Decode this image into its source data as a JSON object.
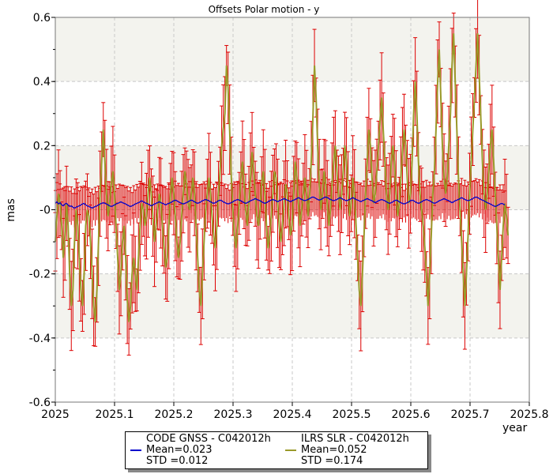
{
  "chart_data": {
    "type": "line",
    "title": "Offsets Polar motion - y",
    "xlabel": "year",
    "ylabel": "mas",
    "xlim": [
      2025.0,
      2025.8
    ],
    "ylim": [
      -0.6,
      0.6
    ],
    "x_ticks": [
      "2025",
      "2025.1",
      "2025.2",
      "2025.3",
      "2025.4",
      "2025.5",
      "2025.6",
      "2025.7",
      "2025.8"
    ],
    "y_ticks": [
      "0.6",
      "0.4",
      "0.2",
      "-0",
      "-0.2",
      "-0.4",
      "-0.6"
    ],
    "grid": true,
    "legend_position": "bottom",
    "series": [
      {
        "name": "CODE GNSS - C042012h",
        "color": "#0000cc",
        "mean_label": "Mean=0.023",
        "std_label": "STD =0.012",
        "x_start": 2025.0,
        "x_step": 0.0027,
        "values": [
          0.02,
          0.025,
          0.018,
          0.022,
          0.015,
          0.012,
          0.018,
          0.02,
          0.015,
          0.01,
          0.012,
          0.008,
          0.005,
          0.008,
          0.01,
          0.012,
          0.015,
          0.018,
          0.02,
          0.015,
          0.012,
          0.01,
          0.008,
          0.005,
          0.008,
          0.01,
          0.012,
          0.015,
          0.018,
          0.02,
          0.022,
          0.02,
          0.018,
          0.015,
          0.012,
          0.01,
          0.012,
          0.015,
          0.018,
          0.02,
          0.022,
          0.025,
          0.022,
          0.02,
          0.018,
          0.015,
          0.012,
          0.01,
          0.012,
          0.015,
          0.018,
          0.02,
          0.022,
          0.025,
          0.028,
          0.025,
          0.022,
          0.02,
          0.018,
          0.015,
          0.012,
          0.015,
          0.018,
          0.02,
          0.022,
          0.025,
          0.022,
          0.02,
          0.018,
          0.015,
          0.018,
          0.02,
          0.022,
          0.025,
          0.028,
          0.03,
          0.028,
          0.025,
          0.022,
          0.02,
          0.018,
          0.02,
          0.022,
          0.025,
          0.028,
          0.03,
          0.028,
          0.025,
          0.022,
          0.02,
          0.022,
          0.025,
          0.028,
          0.03,
          0.032,
          0.03,
          0.028,
          0.025,
          0.022,
          0.02,
          0.022,
          0.025,
          0.028,
          0.03,
          0.028,
          0.025,
          0.022,
          0.02,
          0.018,
          0.02,
          0.022,
          0.025,
          0.028,
          0.03,
          0.032,
          0.03,
          0.028,
          0.025,
          0.022,
          0.02,
          0.022,
          0.025,
          0.028,
          0.03,
          0.032,
          0.035,
          0.032,
          0.03,
          0.028,
          0.025,
          0.022,
          0.02,
          0.022,
          0.025,
          0.028,
          0.03,
          0.032,
          0.03,
          0.028,
          0.025,
          0.028,
          0.03,
          0.032,
          0.035,
          0.032,
          0.03,
          0.028,
          0.025,
          0.028,
          0.03,
          0.032,
          0.035,
          0.038,
          0.035,
          0.032,
          0.03,
          0.028,
          0.03,
          0.032,
          0.035,
          0.038,
          0.04,
          0.038,
          0.035,
          0.032,
          0.03,
          0.032,
          0.035,
          0.038,
          0.04,
          0.038,
          0.035,
          0.032,
          0.03,
          0.028,
          0.03,
          0.032,
          0.035,
          0.038,
          0.035,
          0.032,
          0.03,
          0.028,
          0.03,
          0.032,
          0.035,
          0.038,
          0.035,
          0.032,
          0.03,
          0.028,
          0.025,
          0.028,
          0.03,
          0.032,
          0.035,
          0.032,
          0.03,
          0.028,
          0.025,
          0.022,
          0.025,
          0.028,
          0.03,
          0.032,
          0.03,
          0.028,
          0.025,
          0.022,
          0.02,
          0.022,
          0.025,
          0.028,
          0.03,
          0.028,
          0.025,
          0.022,
          0.02,
          0.018,
          0.02,
          0.022,
          0.025,
          0.028,
          0.03,
          0.028,
          0.025,
          0.022,
          0.02,
          0.022,
          0.025,
          0.028,
          0.03,
          0.032,
          0.03,
          0.028,
          0.025,
          0.022,
          0.02,
          0.022,
          0.025,
          0.028,
          0.03,
          0.032,
          0.035,
          0.032,
          0.03,
          0.028,
          0.025,
          0.022,
          0.025,
          0.028,
          0.03,
          0.032,
          0.035,
          0.038,
          0.035,
          0.032,
          0.03,
          0.028,
          0.03,
          0.032,
          0.035,
          0.038,
          0.04,
          0.038,
          0.035,
          0.032,
          0.03,
          0.028,
          0.025,
          0.022,
          0.02,
          0.018,
          0.015,
          0.012,
          0.01,
          0.012,
          0.015,
          0.018,
          0.02,
          0.018,
          0.015
        ]
      },
      {
        "name": "ILRS SLR - C042012h",
        "color": "#9a9a2a",
        "error_color": "#dd0000",
        "mean_label": "Mean=0.052",
        "std_label": "STD =0.174",
        "x_start": 2025.0,
        "x_step": 0.0027,
        "values": [
          -0.1,
          -0.02,
          0.05,
          0.02,
          -0.05,
          -0.15,
          -0.08,
          0.02,
          -0.05,
          -0.2,
          -0.3,
          -0.25,
          -0.1,
          0.0,
          -0.05,
          -0.15,
          -0.25,
          -0.3,
          -0.2,
          -0.05,
          0.0,
          -0.02,
          -0.1,
          -0.2,
          -0.3,
          -0.35,
          -0.25,
          -0.1,
          0.05,
          0.15,
          0.25,
          0.15,
          0.05,
          -0.02,
          0.02,
          0.08,
          0.12,
          0.05,
          -0.05,
          -0.15,
          -0.25,
          -0.2,
          -0.1,
          -0.05,
          -0.15,
          -0.28,
          -0.35,
          -0.3,
          -0.2,
          -0.15,
          -0.2,
          -0.25,
          -0.15,
          -0.05,
          0.02,
          0.0,
          -0.05,
          -0.02,
          0.05,
          0.1,
          0.05,
          -0.02,
          -0.1,
          -0.05,
          0.0,
          0.05,
          0.02,
          -0.05,
          -0.12,
          -0.18,
          -0.15,
          -0.05,
          0.05,
          0.1,
          0.05,
          -0.02,
          -0.1,
          -0.15,
          -0.1,
          -0.02,
          0.05,
          0.12,
          0.08,
          0.02,
          0.0,
          0.05,
          0.1,
          0.05,
          -0.05,
          -0.15,
          -0.25,
          -0.3,
          -0.2,
          -0.1,
          0.0,
          0.05,
          0.1,
          0.05,
          -0.02,
          -0.08,
          -0.12,
          -0.05,
          0.05,
          0.12,
          0.2,
          0.25,
          0.3,
          0.45,
          0.38,
          0.25,
          0.1,
          0.0,
          -0.08,
          -0.12,
          -0.05,
          0.02,
          0.1,
          0.15,
          0.08,
          0.0,
          -0.05,
          0.02,
          0.1,
          0.18,
          0.12,
          0.05,
          -0.02,
          -0.05,
          0.0,
          0.08,
          0.12,
          0.05,
          -0.05,
          -0.12,
          -0.08,
          -0.02,
          0.05,
          0.12,
          0.1,
          0.02,
          -0.05,
          -0.1,
          -0.05,
          0.02,
          0.08,
          0.05,
          -0.02,
          -0.08,
          -0.05,
          0.05,
          0.15,
          0.1,
          0.02,
          -0.05,
          0.0,
          0.05,
          0.1,
          0.05,
          -0.02,
          0.05,
          0.15,
          0.28,
          0.45,
          0.35,
          0.2,
          0.08,
          0.0,
          0.05,
          0.12,
          0.08,
          0.02,
          -0.05,
          0.0,
          0.08,
          0.15,
          0.2,
          0.12,
          0.05,
          0.0,
          0.05,
          0.12,
          0.2,
          0.15,
          0.05,
          -0.02,
          0.02,
          0.1,
          0.05,
          -0.05,
          -0.15,
          -0.25,
          -0.3,
          -0.2,
          -0.08,
          0.05,
          0.15,
          0.25,
          0.2,
          0.1,
          0.02,
          0.05,
          0.12,
          0.2,
          0.28,
          0.35,
          0.25,
          0.15,
          0.05,
          0.0,
          0.05,
          0.15,
          0.2,
          0.15,
          0.05,
          -0.02,
          0.02,
          0.1,
          0.18,
          0.25,
          0.2,
          0.1,
          0.02,
          0.05,
          0.15,
          0.3,
          0.4,
          0.3,
          0.15,
          0.05,
          0.0,
          -0.05,
          -0.12,
          -0.2,
          -0.3,
          -0.2,
          -0.08,
          0.05,
          0.12,
          0.25,
          0.4,
          0.5,
          0.35,
          0.2,
          0.1,
          0.05,
          0.1,
          0.2,
          0.3,
          0.45,
          0.55,
          0.4,
          0.25,
          0.1,
          0.0,
          -0.1,
          -0.2,
          -0.3,
          -0.2,
          -0.08,
          0.05,
          0.15,
          0.25,
          0.35,
          0.45,
          0.55,
          0.42,
          0.28,
          0.15,
          0.05,
          0.0,
          0.05,
          0.12,
          0.2,
          0.25,
          0.15,
          0.05,
          -0.05,
          -0.15,
          -0.25,
          -0.15,
          -0.05,
          0.02,
          -0.02,
          -0.08
        ]
      }
    ]
  }
}
